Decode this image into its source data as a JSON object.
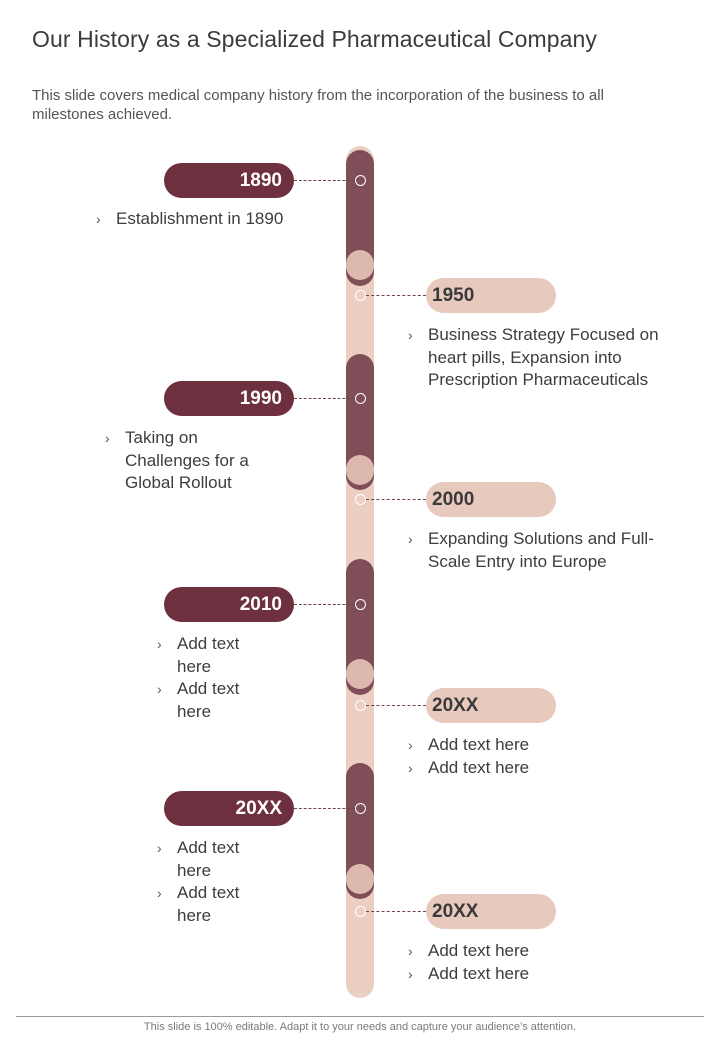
{
  "title": "Our History as a Specialized Pharmaceutical Company",
  "subtitle": "This slide covers medical company history from the incorporation of the business to all milestones achieved.",
  "bullet_glyph": "›",
  "milestones": [
    {
      "year": "1890",
      "items": [
        "Establishment in 1890"
      ]
    },
    {
      "year": "1950",
      "items": [
        "Business Strategy Focused on heart pills, Expansion into Prescription Pharmaceuticals"
      ]
    },
    {
      "year": "1990",
      "items": [
        "Taking on Challenges for a Global Rollout"
      ]
    },
    {
      "year": "2000",
      "items": [
        "Expanding Solutions and Full-Scale Entry into Europe"
      ]
    },
    {
      "year": "2010",
      "items": [
        "Add text here",
        "Add text here"
      ]
    },
    {
      "year": "20XX",
      "items": [
        "Add text here",
        "Add text here"
      ]
    },
    {
      "year": "20XX",
      "items": [
        "Add text here",
        "Add text here"
      ]
    },
    {
      "year": "20XX",
      "items": [
        "Add text here",
        "Add text here"
      ]
    }
  ],
  "colors": {
    "dark": "#6e2f3e",
    "segment": "#7f4e58",
    "light": "#e8c9bd"
  },
  "footer": "This slide is 100% editable. Adapt it to your needs and capture your audience’s attention."
}
